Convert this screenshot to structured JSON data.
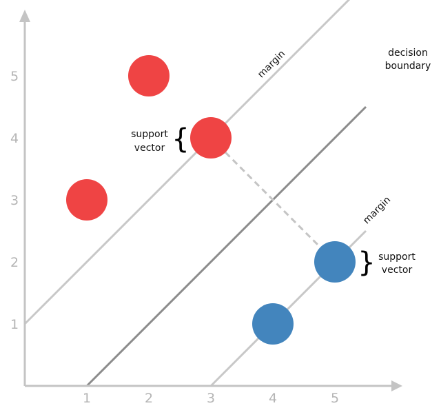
{
  "chart_data": {
    "type": "scatter",
    "x_ticks": [
      "1",
      "2",
      "3",
      "4",
      "5"
    ],
    "y_ticks": [
      "1",
      "2",
      "3",
      "4",
      "5"
    ],
    "xlim": [
      0,
      6
    ],
    "ylim": [
      0,
      6
    ],
    "series": [
      {
        "class": "red",
        "color": "#ef4444",
        "points": [
          [
            2,
            5
          ],
          [
            3,
            4
          ],
          [
            1,
            3
          ]
        ]
      },
      {
        "class": "blue",
        "color": "#4385bd",
        "points": [
          [
            5,
            2
          ],
          [
            4,
            1
          ]
        ]
      }
    ],
    "lines": [
      {
        "role": "upper-margin",
        "slope": 1,
        "intercept": 1,
        "color": "#c8c8c8"
      },
      {
        "role": "decision-boundary",
        "slope": 1,
        "intercept": -1,
        "color": "#8c8c8c"
      },
      {
        "role": "lower-margin",
        "slope": 1,
        "intercept": -3,
        "color": "#c8c8c8"
      }
    ],
    "support_vector_link": {
      "from": [
        3,
        4
      ],
      "to": [
        5,
        2
      ],
      "style": "dashed"
    },
    "grid": false
  },
  "labels": {
    "margin_top": "margin",
    "margin_bottom": "margin",
    "decision_line1": "decision",
    "decision_line2": "boundary",
    "sv_left_line1": "support",
    "sv_left_line2": "vector",
    "sv_right_line1": "support",
    "sv_right_line2": "vector",
    "brace_left": "{",
    "brace_right": "}"
  },
  "colors": {
    "axis": "#c4c4c4",
    "red": "#ef4444",
    "blue": "#4385bd"
  }
}
